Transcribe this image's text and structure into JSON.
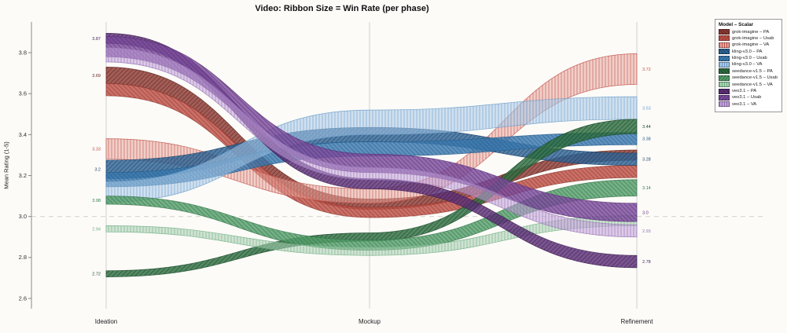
{
  "title": "Video: Ribbon Size = Win Rate (per phase)",
  "ylabel": "Mean Rating (1-5)",
  "legend": {
    "title": "Model – Scalar"
  },
  "chart_data": {
    "type": "area",
    "subtype": "ribbon-bump-chart",
    "categories": [
      "Ideation",
      "Mockup",
      "Refinement"
    ],
    "ylim": [
      2.55,
      3.95
    ],
    "yticks": [
      "2.6",
      "2.8",
      "3.0",
      "3.2",
      "3.4",
      "3.6",
      "3.8"
    ],
    "baseline": 3.0,
    "grid": "vertical-at-phases",
    "legend_position": "top-right",
    "series": [
      {
        "name": "grok-imagine – PA",
        "model": "grok-imagine",
        "scalar": "PA",
        "color": "#8f3a33",
        "edge": "#5e241f",
        "hatch": "diag1",
        "values": [
          3.69,
          3.06,
          3.3
        ],
        "widths": [
          0.08,
          0.05,
          0.05
        ],
        "start_label": "3.69",
        "end_label": ""
      },
      {
        "name": "grok-imagine – Usab",
        "model": "grok-imagine",
        "scalar": "Usab",
        "color": "#c05046",
        "edge": "#8f3a33",
        "hatch": "diag2",
        "values": [
          3.62,
          3.02,
          3.22
        ],
        "widths": [
          0.06,
          0.05,
          0.06
        ],
        "start_label": "",
        "end_label": ""
      },
      {
        "name": "grok-imagine – VA",
        "model": "grok-imagine",
        "scalar": "VA",
        "color": "#e7aaa1",
        "edge": "#c05046",
        "hatch": "vert",
        "values": [
          3.33,
          3.1,
          3.72
        ],
        "widths": [
          0.1,
          0.07,
          0.15
        ],
        "start_label": "3.33",
        "end_label": "3.72"
      },
      {
        "name": "kling-v3.0 – PA",
        "model": "kling-v3.0",
        "scalar": "PA",
        "color": "#2f6496",
        "edge": "#1d4468",
        "hatch": "diag1",
        "values": [
          3.23,
          3.4,
          3.28
        ],
        "widths": [
          0.09,
          0.07,
          0.06
        ],
        "start_label": "3.2",
        "end_label": "3.28"
      },
      {
        "name": "kling-v3.0 – Usab",
        "model": "kling-v3.0",
        "scalar": "Usab",
        "color": "#3c7ab0",
        "edge": "#275d8c",
        "hatch": "diag2",
        "values": [
          3.18,
          3.33,
          3.38
        ],
        "widths": [
          0.07,
          0.07,
          0.06
        ],
        "start_label": "",
        "end_label": "3.38"
      },
      {
        "name": "kling-v3.0 – VA",
        "model": "kling-v3.0",
        "scalar": "VA",
        "color": "#aac9e6",
        "edge": "#6b9cc8",
        "hatch": "vert",
        "values": [
          3.12,
          3.46,
          3.53
        ],
        "widths": [
          0.1,
          0.12,
          0.11
        ],
        "start_label": "",
        "end_label": "3.53"
      },
      {
        "name": "seedance-v1.5 – PA",
        "model": "seedance-v1.5",
        "scalar": "PA",
        "color": "#2e6f41",
        "edge": "#1d4a2a",
        "hatch": "diag1",
        "values": [
          2.72,
          2.9,
          3.44
        ],
        "widths": [
          0.03,
          0.04,
          0.07
        ],
        "start_label": "2.72",
        "end_label": "3.44"
      },
      {
        "name": "seedance-v1.5 – Usab",
        "model": "seedance-v1.5",
        "scalar": "Usab",
        "color": "#57a06b",
        "edge": "#35744a",
        "hatch": "diag2",
        "values": [
          3.08,
          2.86,
          3.14
        ],
        "widths": [
          0.04,
          0.05,
          0.08
        ],
        "start_label": "3.08",
        "end_label": "3.14"
      },
      {
        "name": "seedance-v1.5 – VA",
        "model": "seedance-v1.5",
        "scalar": "VA",
        "color": "#abd0b4",
        "edge": "#6fae82",
        "hatch": "vert",
        "values": [
          2.94,
          2.83,
          2.98
        ],
        "widths": [
          0.03,
          0.04,
          0.05
        ],
        "start_label": "2.94",
        "end_label": ""
      },
      {
        "name": "veo3.1 – PA",
        "model": "veo3.1",
        "scalar": "PA",
        "color": "#5d3078",
        "edge": "#3f1f54",
        "hatch": "diag1",
        "values": [
          3.87,
          3.16,
          2.78
        ],
        "widths": [
          0.05,
          0.05,
          0.06
        ],
        "start_label": "3.87",
        "end_label": "2.78"
      },
      {
        "name": "veo3.1 – Usab",
        "model": "veo3.1",
        "scalar": "Usab",
        "color": "#7b4d9c",
        "edge": "#5d3078",
        "hatch": "diag2",
        "values": [
          3.83,
          3.26,
          3.02
        ],
        "widths": [
          0.1,
          0.09,
          0.09
        ],
        "start_label": "",
        "end_label": "3.0"
      },
      {
        "name": "veo3.1 – VA",
        "model": "veo3.1",
        "scalar": "VA",
        "color": "#c2a2d8",
        "edge": "#9371b4",
        "hatch": "vert",
        "values": [
          3.79,
          3.21,
          2.93
        ],
        "widths": [
          0.07,
          0.06,
          0.06
        ],
        "start_label": "",
        "end_label": "2.93"
      }
    ]
  }
}
